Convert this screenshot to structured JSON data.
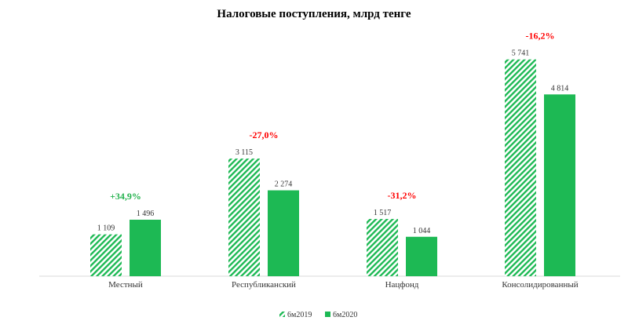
{
  "chart_data": {
    "type": "bar",
    "title": "Налоговые поступления, млрд тенге",
    "categories": [
      "Местный",
      "Республиканский",
      "Нацфонд",
      "Консолидированный"
    ],
    "series": [
      {
        "name": "6м2019",
        "values": [
          1109,
          3115,
          1517,
          5741
        ],
        "labels": [
          "1 109",
          "3 115",
          "1 517",
          "5 741"
        ],
        "pattern": "hatched"
      },
      {
        "name": "6м2020",
        "values": [
          1496,
          2274,
          1044,
          4814
        ],
        "labels": [
          "1 496",
          "2 274",
          "1 044",
          "4 814"
        ],
        "pattern": "solid"
      }
    ],
    "changes": [
      "+34,9%",
      "-27,0%",
      "-31,2%",
      "-16,2%"
    ],
    "ylim": [
      0,
      6400
    ],
    "grid": false,
    "legend": "bottom"
  },
  "colors": {
    "bar": "#1db954",
    "positive": "#22b14c",
    "negative": "#ff0000",
    "axis": "#d9d9d9"
  }
}
